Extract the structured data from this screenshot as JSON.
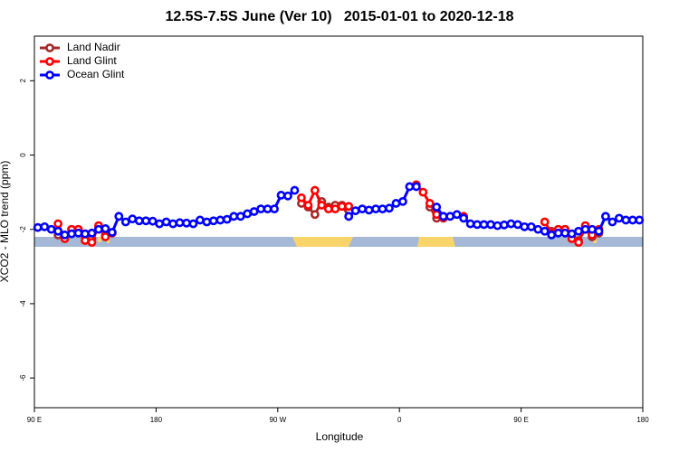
{
  "chart_data": {
    "type": "line",
    "title": "12.5S-7.5S June (Ver 10)   2015-01-01 to 2020-12-18",
    "xlabel": "Longitude",
    "ylabel": "XCO2 - MLO trend (ppm)",
    "x": [
      92.5,
      97.5,
      102.5,
      107.5,
      112.5,
      117.5,
      122.5,
      127.5,
      132.5,
      137.5,
      142.5,
      147.5,
      152.5,
      157.5,
      162.5,
      167.5,
      172.5,
      177.5,
      182.5,
      187.5,
      192.5,
      197.5,
      202.5,
      207.5,
      212.5,
      217.5,
      222.5,
      227.5,
      232.5,
      237.5,
      242.5,
      247.5,
      252.5,
      257.5,
      262.5,
      267.5,
      272.5,
      277.5,
      282.5,
      287.5,
      292.5,
      297.5,
      302.5,
      307.5,
      312.5,
      317.5,
      322.5,
      327.5,
      332.5,
      337.5,
      342.5,
      347.5,
      352.5,
      357.5,
      362.5,
      367.5,
      372.5,
      377.5,
      382.5,
      387.5,
      392.5,
      397.5,
      402.5,
      407.5,
      412.5,
      417.5,
      422.5,
      427.5,
      432.5,
      437.5,
      442.5,
      447.5,
      452.5,
      457.5,
      462.5,
      467.5,
      472.5,
      477.5,
      482.5,
      487.5,
      492.5,
      497.5,
      502.5,
      507.5,
      512.5,
      517.5,
      522.5,
      527.5,
      532.5,
      537.5
    ],
    "series": [
      {
        "name": "Land Nadir",
        "color": "#a52a2a",
        "values": [
          null,
          null,
          null,
          -2.15,
          -2.2,
          -2.0,
          -2.0,
          -2.2,
          -2.25,
          -1.95,
          -2.15,
          null,
          null,
          null,
          null,
          null,
          null,
          null,
          null,
          null,
          null,
          null,
          null,
          null,
          null,
          null,
          null,
          null,
          null,
          null,
          null,
          null,
          null,
          null,
          null,
          null,
          null,
          null,
          null,
          -1.3,
          -1.4,
          -1.6,
          -1.25,
          -1.4,
          -1.35,
          -1.35,
          -1.65,
          null,
          null,
          null,
          null,
          null,
          null,
          null,
          null,
          null,
          null,
          null,
          -1.4,
          -1.7,
          -1.7,
          null,
          null,
          null,
          null,
          null,
          null,
          null,
          null,
          null,
          null,
          null,
          null,
          null,
          null,
          null,
          -2.05,
          -2.0,
          -2.0,
          -2.2,
          -2.3,
          -2.0,
          -2.2,
          -2.1,
          null,
          null,
          null,
          null,
          null,
          null
        ]
      },
      {
        "name": "Land Glint",
        "color": "#ff0000",
        "values": [
          null,
          null,
          null,
          -1.85,
          -2.25,
          -2.0,
          -2.0,
          -2.3,
          -2.35,
          -1.9,
          -2.2,
          -2.1,
          null,
          null,
          null,
          null,
          null,
          null,
          null,
          null,
          null,
          null,
          null,
          null,
          null,
          null,
          null,
          null,
          null,
          null,
          null,
          null,
          null,
          null,
          null,
          null,
          null,
          null,
          null,
          -1.15,
          -1.35,
          -0.95,
          -1.35,
          -1.45,
          -1.45,
          -1.38,
          -1.38,
          null,
          null,
          null,
          null,
          null,
          null,
          null,
          null,
          null,
          -0.8,
          -1.0,
          -1.3,
          -1.6,
          -1.68,
          null,
          null,
          -1.65,
          null,
          null,
          null,
          null,
          null,
          null,
          null,
          null,
          null,
          null,
          null,
          -1.8,
          -2.1,
          -2.0,
          -2.0,
          -2.25,
          -2.35,
          -1.9,
          -2.15,
          -2.0,
          null,
          null,
          null,
          null,
          null,
          null
        ]
      },
      {
        "name": "Ocean Glint",
        "color": "#0000ff",
        "values": [
          -1.95,
          -1.93,
          -2.0,
          -2.05,
          -2.15,
          -2.12,
          -2.1,
          -2.12,
          -2.1,
          -2.0,
          -1.98,
          -2.08,
          -1.65,
          -1.8,
          -1.72,
          -1.77,
          -1.77,
          -1.78,
          -1.85,
          -1.8,
          -1.85,
          -1.82,
          -1.83,
          -1.85,
          -1.75,
          -1.8,
          -1.77,
          -1.75,
          -1.73,
          -1.65,
          -1.65,
          -1.58,
          -1.52,
          -1.45,
          -1.45,
          -1.45,
          -1.08,
          -1.1,
          -0.95,
          null,
          null,
          null,
          null,
          null,
          null,
          null,
          -1.65,
          -1.5,
          -1.45,
          -1.48,
          -1.45,
          -1.45,
          -1.43,
          -1.3,
          -1.25,
          -0.85,
          -0.85,
          null,
          null,
          -1.4,
          -1.65,
          -1.65,
          -1.6,
          -1.7,
          -1.85,
          -1.87,
          -1.87,
          -1.87,
          -1.9,
          -1.88,
          -1.85,
          -1.87,
          -1.93,
          -1.93,
          -2.0,
          -2.05,
          -2.15,
          -2.1,
          -2.1,
          -2.12,
          -2.05,
          -2.0,
          -2.0,
          -2.05,
          -1.65,
          -1.8,
          -1.7,
          -1.75,
          -1.75,
          -1.75
        ]
      }
    ],
    "xlim": [
      90,
      540
    ],
    "xticks": [
      {
        "value": 90,
        "label": "90 E"
      },
      180,
      {
        "value": 270,
        "label": "90 W"
      },
      {
        "value": 360,
        "label": "0"
      },
      {
        "value": 450,
        "label": "90 E"
      },
      {
        "value": 540,
        "label": "180"
      }
    ],
    "ylim": [
      -6.8,
      3.2
    ],
    "yticks": [
      -6,
      -4,
      -2,
      0,
      2
    ],
    "legend": "top-left"
  }
}
